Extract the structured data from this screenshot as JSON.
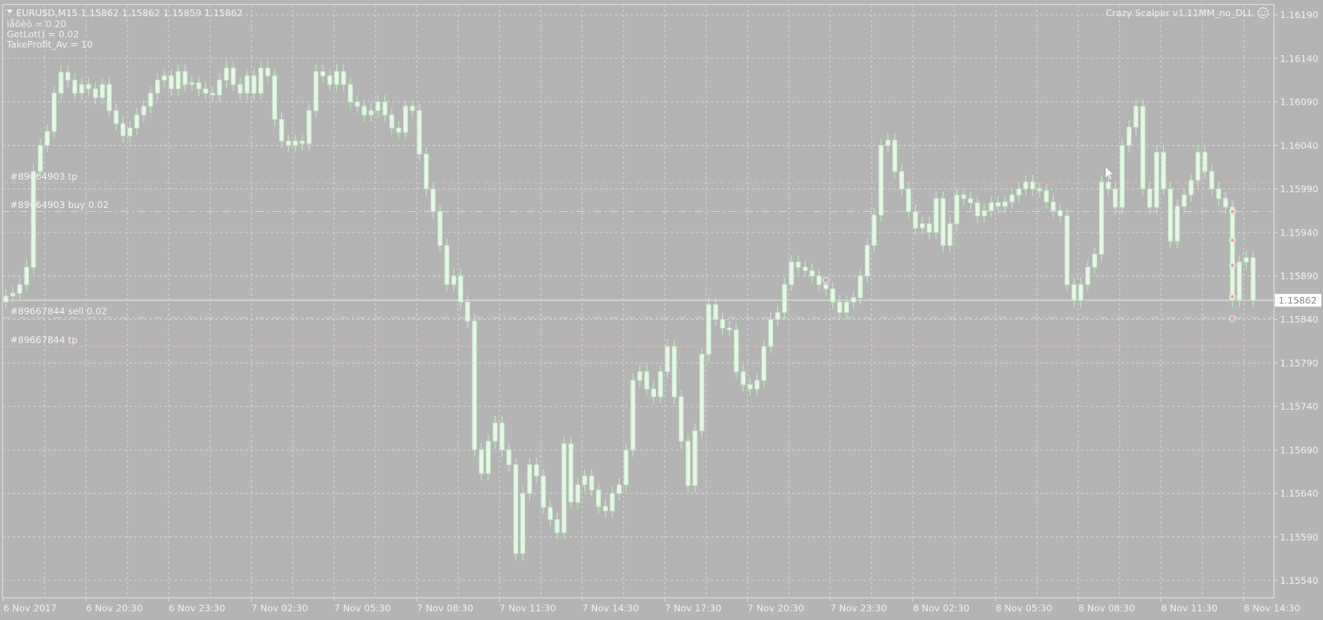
{
  "header": {
    "symbol_line": "EURUSD,M15  1.15862 1.15862 1.15859 1.15862",
    "info_lines": [
      "ìåõèò = 0.20",
      "GetLot() = 0.02",
      "TakeProfit_Av = 10"
    ],
    "expert_name": "Crazy Scalper v1.11MM_no_DLL",
    "expert_icon": "smiley-icon",
    "collapse_icon": "triangle-down-icon"
  },
  "colors": {
    "background": "#b4b4b4",
    "grid": "#d6d6d6",
    "candle": "#e4f7e4",
    "candle_outline": "#c4eac4",
    "text": "#f2f2f2",
    "tp_line": "#e6b4b4",
    "order_line": "#d8d8d8",
    "marker": "#f0a0a0"
  },
  "chart_data": {
    "type": "candlestick",
    "symbol": "EURUSD",
    "timeframe": "M15",
    "ylim": [
      1.1552,
      1.16202
    ],
    "grid": true,
    "y_ticks": [
      "1.16190",
      "1.16140",
      "1.16090",
      "1.16040",
      "1.15990",
      "1.15940",
      "1.15890",
      "1.15840",
      "1.15790",
      "1.15740",
      "1.15690",
      "1.15640",
      "1.15590",
      "1.15540"
    ],
    "x_ticks": [
      "6 Nov 2017",
      "6 Nov 20:30",
      "6 Nov 23:30",
      "7 Nov 02:30",
      "7 Nov 05:30",
      "7 Nov 08:30",
      "7 Nov 11:30",
      "7 Nov 14:30",
      "7 Nov 17:30",
      "7 Nov 20:30",
      "7 Nov 23:30",
      "8 Nov 02:30",
      "8 Nov 05:30",
      "8 Nov 08:30",
      "8 Nov 11:30",
      "8 Nov 14:30"
    ],
    "bars_per_x_tick": 12,
    "first_open": 1.1586,
    "closes": [
      1.15867,
      1.1587,
      1.1588,
      1.159,
      1.1601,
      1.1604,
      1.16056,
      1.161,
      1.16124,
      1.16115,
      1.161,
      1.1611,
      1.16105,
      1.16095,
      1.1611,
      1.1608,
      1.16065,
      1.16051,
      1.1606,
      1.16075,
      1.16085,
      1.161,
      1.16115,
      1.1612,
      1.16105,
      1.16125,
      1.1611,
      1.16112,
      1.16105,
      1.161,
      1.16098,
      1.16115,
      1.16129,
      1.1611,
      1.161,
      1.1612,
      1.161,
      1.16129,
      1.1612,
      1.1607,
      1.16045,
      1.1604,
      1.16045,
      1.16042,
      1.1608,
      1.16125,
      1.1612,
      1.1611,
      1.16125,
      1.1611,
      1.1609,
      1.16085,
      1.16075,
      1.1608,
      1.1609,
      1.16075,
      1.1606,
      1.16055,
      1.16085,
      1.1608,
      1.1603,
      1.1599,
      1.15964,
      1.15925,
      1.1588,
      1.1589,
      1.1586,
      1.15838,
      1.1569,
      1.15663,
      1.157,
      1.15721,
      1.1569,
      1.15673,
      1.15571,
      1.1564,
      1.15673,
      1.1566,
      1.15624,
      1.1561,
      1.15595,
      1.15697,
      1.1563,
      1.1565,
      1.1566,
      1.15644,
      1.15625,
      1.1562,
      1.1564,
      1.1565,
      1.1569,
      1.1577,
      1.1578,
      1.1576,
      1.15751,
      1.1578,
      1.15809,
      1.15751,
      1.157,
      1.15649,
      1.15712,
      1.158,
      1.15857,
      1.1584,
      1.1583,
      1.15828,
      1.1578,
      1.15765,
      1.1576,
      1.1577,
      1.15809,
      1.1584,
      1.15848,
      1.1588,
      1.15906,
      1.159,
      1.15896,
      1.1589,
      1.1588,
      1.15875,
      1.1586,
      1.15848,
      1.1586,
      1.15865,
      1.1589,
      1.15925,
      1.1596,
      1.1604,
      1.16046,
      1.1601,
      1.1599,
      1.15964,
      1.15945,
      1.1595,
      1.1594,
      1.15979,
      1.15925,
      1.1595,
      1.15983,
      1.15979,
      1.15974,
      1.15959,
      1.15965,
      1.15974,
      1.1597,
      1.15975,
      1.15983,
      1.1599,
      1.15998,
      1.1599,
      1.15988,
      1.15975,
      1.15965,
      1.15959,
      1.1588,
      1.15862,
      1.1588,
      1.159,
      1.15915,
      1.15998,
      1.1599,
      1.15969,
      1.1604,
      1.16061,
      1.16085,
      1.1599,
      1.15969,
      1.16032,
      1.1599,
      1.1593,
      1.1597,
      1.15983,
      1.16,
      1.16032,
      1.1601,
      1.1599,
      1.15979,
      1.15969,
      1.15862,
      1.15906,
      1.15911,
      1.15862
    ],
    "current_price": "1.15862",
    "order_lines": [
      {
        "label": "#89664903 tp",
        "price": 1.15997,
        "kind": "tp"
      },
      {
        "label": "#89664903 buy 0.02",
        "price": 1.15964,
        "kind": "order"
      },
      {
        "label": "#89667844 sell 0.02",
        "price": 1.15842,
        "kind": "order"
      },
      {
        "label": "#89667844 tp",
        "price": 1.15809,
        "kind": "tp"
      }
    ],
    "trade_markers": [
      {
        "bar": 119,
        "price": 1.15885
      },
      {
        "bar": 178,
        "price": 1.15964
      },
      {
        "bar": 178,
        "price": 1.15931
      },
      {
        "bar": 178,
        "price": 1.15902
      },
      {
        "bar": 178,
        "price": 1.15866
      },
      {
        "bar": 178,
        "price": 1.15841
      }
    ]
  }
}
